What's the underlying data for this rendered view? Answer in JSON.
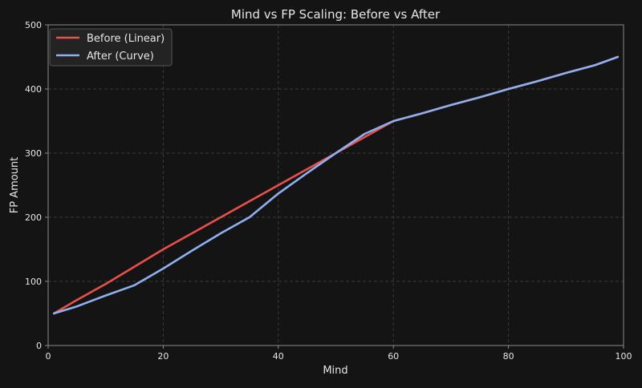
{
  "chart_data": {
    "type": "line",
    "title": "Mind vs FP Scaling: Before vs After",
    "xlabel": "Mind",
    "ylabel": "FP Amount",
    "xlim": [
      0,
      100
    ],
    "ylim": [
      0,
      500
    ],
    "xticks": [
      0,
      20,
      40,
      60,
      80,
      100
    ],
    "yticks": [
      0,
      100,
      200,
      300,
      400,
      500
    ],
    "grid": true,
    "legend_position": "top-left",
    "x": [
      1,
      5,
      10,
      15,
      20,
      25,
      30,
      35,
      40,
      45,
      50,
      55,
      60,
      65,
      70,
      75,
      80,
      85,
      90,
      95,
      99
    ],
    "series": [
      {
        "name": "Before (Linear)",
        "color": "#e8504a",
        "values": [
          50,
          71,
          96,
          123,
          150,
          175,
          200,
          225,
          250,
          275,
          300,
          325,
          350,
          362,
          375,
          387,
          400,
          412,
          425,
          437,
          450
        ]
      },
      {
        "name": "After (Curve)",
        "color": "#8fb0f0",
        "values": [
          50,
          61,
          78,
          94,
          120,
          148,
          175,
          200,
          237,
          269,
          300,
          330,
          350,
          362,
          375,
          387,
          400,
          412,
          425,
          437,
          450
        ]
      }
    ],
    "colors": {
      "background": "#141414",
      "axes": "#8a8a8a",
      "grid": "#3a3a3a",
      "legend_bg": "#232323",
      "legend_border": "#555555"
    }
  }
}
